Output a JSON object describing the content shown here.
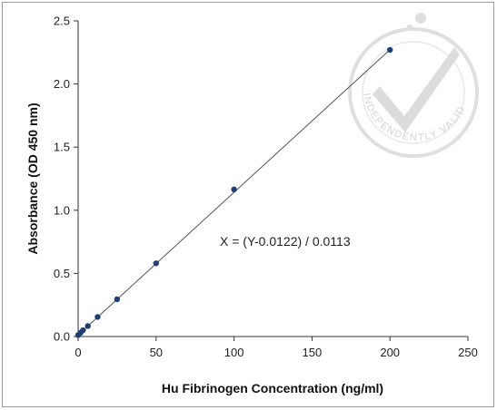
{
  "chart_data": {
    "type": "scatter",
    "title": "",
    "xlabel": "Hu Fibrinogen Concentration (ng/ml)",
    "ylabel": "Absorbance (OD 450 nm)",
    "xlim": [
      0,
      250
    ],
    "ylim": [
      0,
      2.5
    ],
    "x_ticks": [
      "0",
      "50",
      "100",
      "150",
      "200",
      "250"
    ],
    "y_ticks": [
      "0.0",
      "0.5",
      "1.0",
      "1.5",
      "2.0",
      "2.5"
    ],
    "grid": false,
    "legend": "none",
    "series": [
      {
        "x": [
          0,
          1.56,
          3.13,
          6.25,
          12.5,
          25,
          50,
          100,
          200
        ],
        "y": [
          0.012,
          0.03,
          0.05,
          0.083,
          0.155,
          0.295,
          0.58,
          1.165,
          2.27
        ]
      }
    ],
    "trendline": {
      "slope": 0.0113,
      "intercept": 0.0122
    },
    "annotation": "X = (Y-0.0122) / 0.0113",
    "marker_color": "#1f3f73",
    "line_color": "#555555"
  },
  "watermark": {
    "text": "INDEPENDENTLY VALIDATED",
    "icon": "checkmark-seal-icon",
    "color": "#d4d4d4"
  }
}
